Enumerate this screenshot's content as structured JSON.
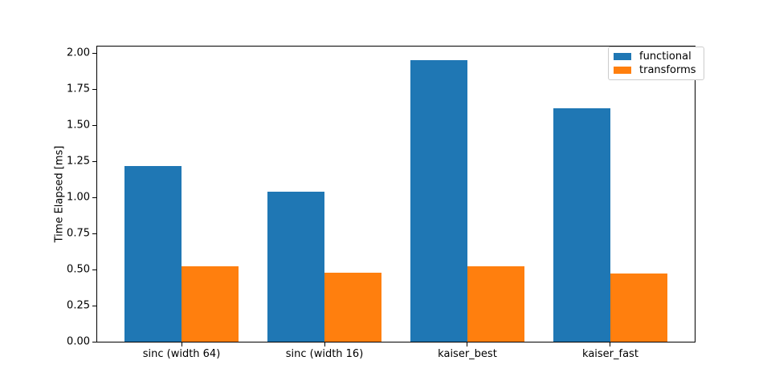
{
  "figure": {
    "background": "#ffffff"
  },
  "chart_data": {
    "type": "bar",
    "title": "",
    "xlabel": "",
    "ylabel": "Time Elapsed [ms]",
    "categories": [
      "sinc (width 64)",
      "sinc (width 16)",
      "kaiser_best",
      "kaiser_fast"
    ],
    "series": [
      {
        "name": "functional",
        "color": "#1f77b4",
        "values": [
          1.22,
          1.04,
          1.95,
          1.62
        ]
      },
      {
        "name": "transforms",
        "color": "#ff7f0e",
        "values": [
          0.52,
          0.48,
          0.52,
          0.47
        ]
      }
    ],
    "bar_width": 0.4,
    "group_offsets": [
      -0.2,
      0.2
    ],
    "xlim": [
      -0.59,
      3.59
    ],
    "ylim": [
      0,
      2.046
    ],
    "ytick_values": [
      0,
      0.25,
      0.5,
      0.75,
      1.0,
      1.25,
      1.5,
      1.75,
      2.0
    ],
    "ytick_labels": [
      "0.00",
      "0.25",
      "0.50",
      "0.75",
      "1.00",
      "1.25",
      "1.50",
      "1.75",
      "2.00"
    ],
    "grid": false,
    "legend": {
      "position": "upper right",
      "entries": [
        "functional",
        "transforms"
      ]
    }
  }
}
